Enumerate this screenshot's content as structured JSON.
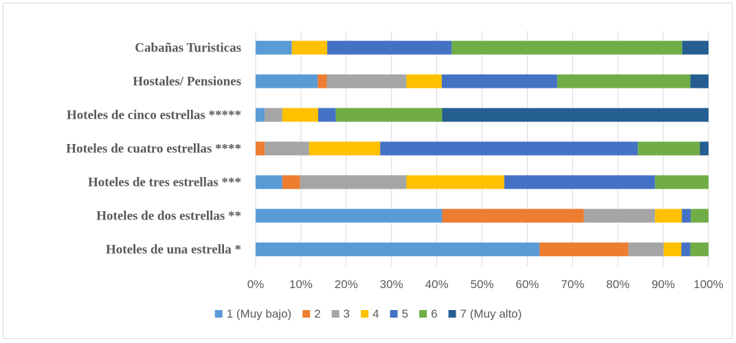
{
  "chart_data": {
    "type": "bar",
    "orientation": "horizontal",
    "stacked": "percent",
    "title": "",
    "xlabel": "",
    "ylabel": "",
    "xlim": [
      0,
      100
    ],
    "grid": "vertical",
    "legend_position": "bottom",
    "categories": [
      "Cabañas Turisticas",
      "Hostales/ Pensiones",
      "Hoteles de cinco estrellas *****",
      "Hoteles de cuatro estrellas ****",
      "Hoteles de tres estrellas ***",
      "Hoteles de dos estrellas **",
      "Hoteles de una estrella *"
    ],
    "x_ticks": [
      "0%",
      "10%",
      "20%",
      "30%",
      "40%",
      "50%",
      "60%",
      "70%",
      "80%",
      "90%",
      "100%"
    ],
    "series": [
      {
        "name": "1 (Muy bajo)",
        "color": "#5b9bd5",
        "values": [
          8,
          13.7,
          2,
          0,
          5.9,
          41.2,
          62.7
        ]
      },
      {
        "name": "2",
        "color": "#ed7d31",
        "values": [
          0,
          2,
          0,
          2,
          3.9,
          31.3,
          19.6
        ]
      },
      {
        "name": "3",
        "color": "#a5a5a5",
        "values": [
          0,
          17.6,
          3.9,
          9.8,
          23.5,
          15.7,
          7.8
        ]
      },
      {
        "name": "4",
        "color": "#ffc000",
        "values": [
          7.8,
          7.8,
          7.9,
          15.7,
          21.6,
          5.9,
          3.9
        ]
      },
      {
        "name": "5",
        "color": "#4472c4",
        "values": [
          27.5,
          25.5,
          3.9,
          56.9,
          33.3,
          2,
          2
        ]
      },
      {
        "name": "6",
        "color": "#70ad47",
        "values": [
          50.9,
          29.4,
          23.5,
          13.7,
          11.8,
          3.9,
          4
        ]
      },
      {
        "name": "7 (Muy alto)",
        "color": "#255e91",
        "values": [
          5.8,
          4,
          58.8,
          1.9,
          0,
          0,
          0
        ]
      }
    ]
  }
}
